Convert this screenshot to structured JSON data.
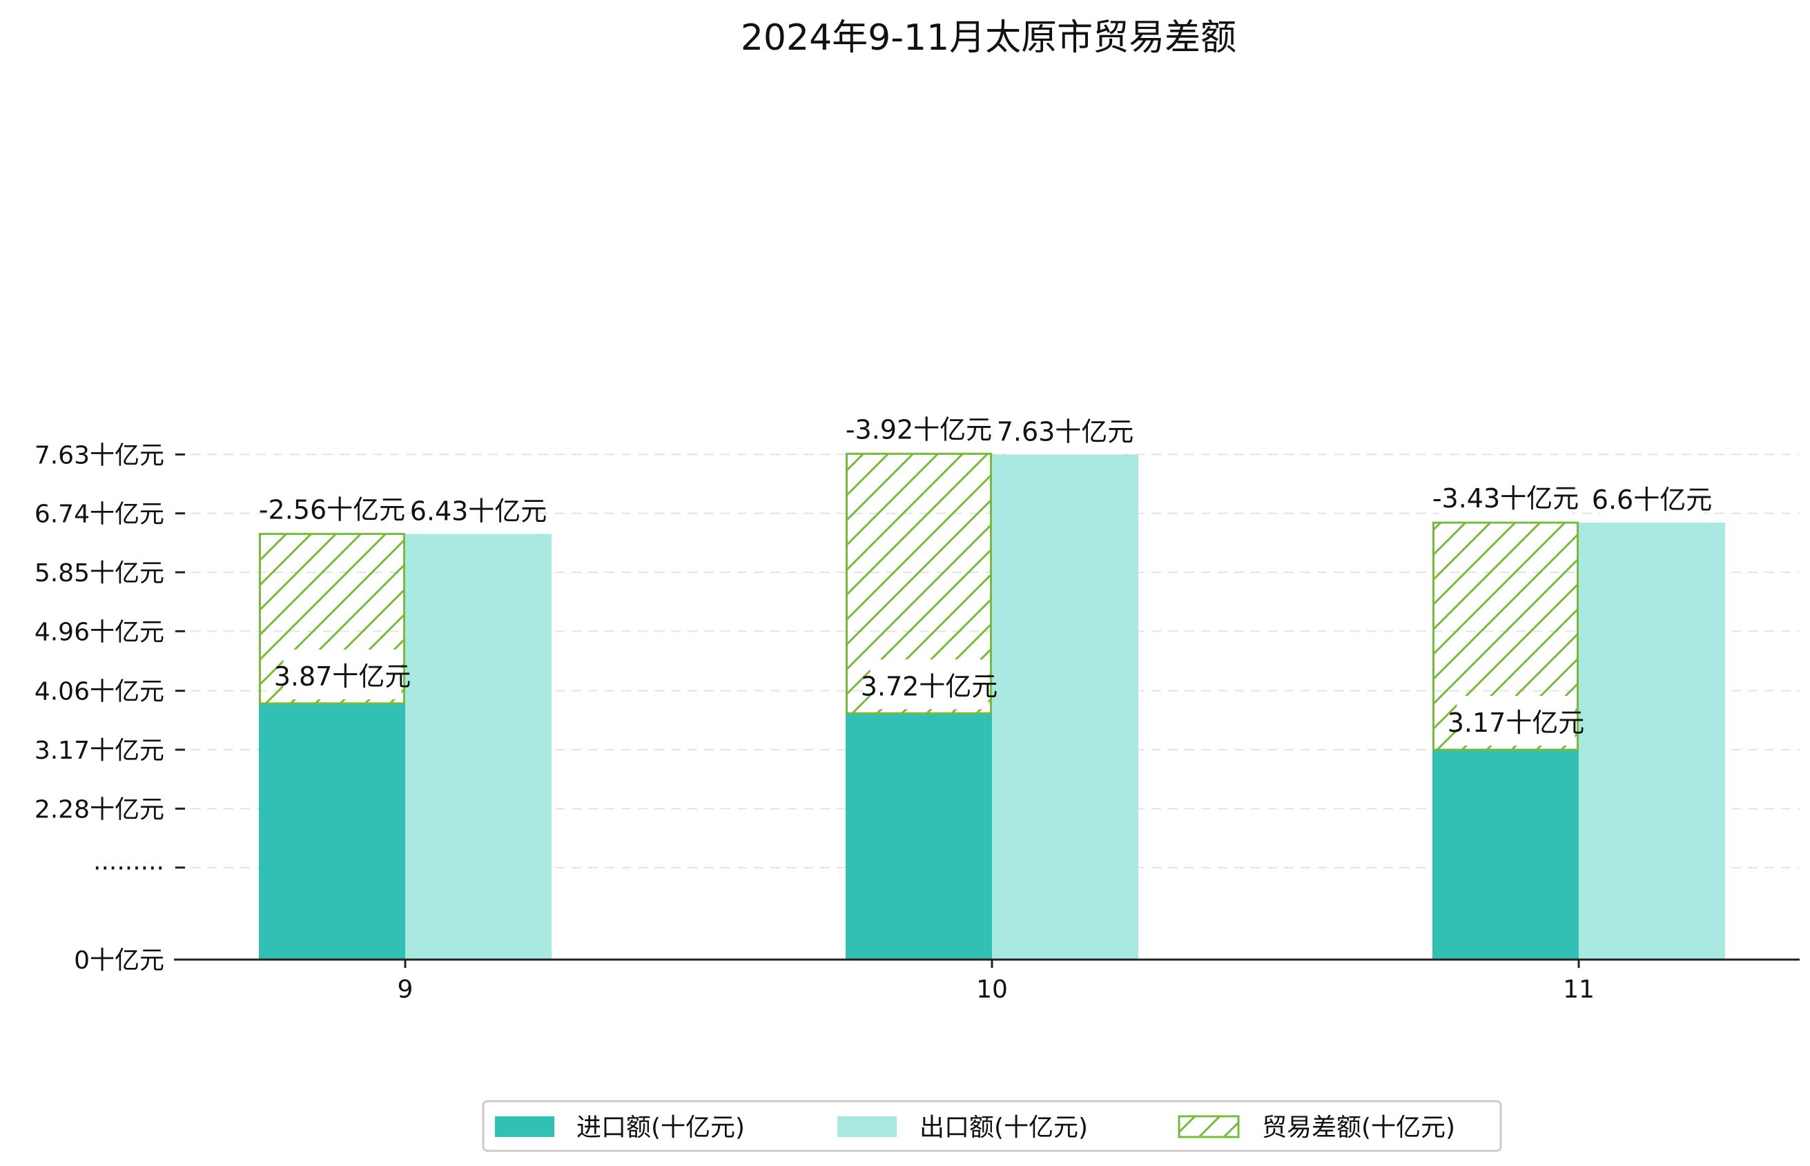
{
  "chart_data": {
    "type": "bar",
    "title": "2024年9-11月太原市贸易差额",
    "categories": [
      "9",
      "10",
      "11"
    ],
    "series": [
      {
        "name": "进口额(十亿元)",
        "values": [
          3.87,
          3.72,
          3.17
        ],
        "color": "#31c0b3",
        "labels": [
          "3.87十亿元",
          "3.72十亿元",
          "3.17十亿元"
        ]
      },
      {
        "name": "出口额(十亿元)",
        "values": [
          6.43,
          7.63,
          6.6
        ],
        "color": "#aae8e2",
        "labels": [
          "6.43十亿元",
          "7.63十亿元",
          "6.6十亿元"
        ]
      },
      {
        "name": "贸易差额(十亿元)",
        "values": [
          -2.56,
          -3.92,
          -3.43
        ],
        "color": "#7ab940",
        "hatch": true,
        "labels": [
          "-2.56十亿元",
          "-3.92十亿元",
          "-3.43十亿元"
        ]
      }
    ],
    "yticks": [
      {
        "value": 0,
        "label": "0十亿元"
      },
      {
        "value": 1.39,
        "label": "·········"
      },
      {
        "value": 2.28,
        "label": "2.28十亿元"
      },
      {
        "value": 3.17,
        "label": "3.17十亿元"
      },
      {
        "value": 4.06,
        "label": "4.06十亿元"
      },
      {
        "value": 4.96,
        "label": "4.96十亿元"
      },
      {
        "value": 5.85,
        "label": "5.85十亿元"
      },
      {
        "value": 6.74,
        "label": "6.74十亿元"
      },
      {
        "value": 7.63,
        "label": "7.63十亿元"
      }
    ],
    "y_axis_break": true,
    "grid": "horizontal-dashed",
    "xlabel": "",
    "ylabel": "",
    "legend_position": "bottom-center"
  }
}
